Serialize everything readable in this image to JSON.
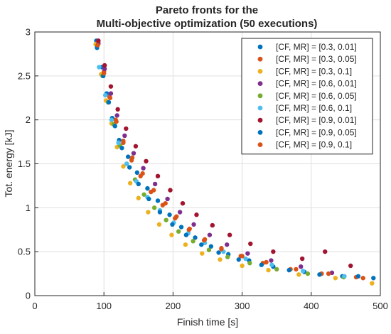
{
  "chart_data": {
    "type": "scatter",
    "title": [
      "Pareto fronts for the",
      "Multi-objective optimization (50 executions)"
    ],
    "xlabel": "Finish time [s]",
    "ylabel": "Tot. energy [kJ]",
    "xlim": [
      0,
      500
    ],
    "ylim": [
      0,
      3
    ],
    "xticks": [
      0,
      100,
      200,
      300,
      400,
      500
    ],
    "yticks": [
      0,
      0.5,
      1,
      1.5,
      2,
      2.5,
      3
    ],
    "xtick_labels": [
      "0",
      "100",
      "200",
      "300",
      "400",
      "500"
    ],
    "ytick_labels": [
      "0",
      "0.5",
      "1",
      "1.5",
      "2",
      "2.5",
      "3"
    ],
    "grid": true,
    "legend_position": "top-right",
    "series": [
      {
        "name": "[CF, MR] = [0.3, 0.01]",
        "color": "#0072BD",
        "points": [
          [
            89,
            2.9
          ],
          [
            97,
            2.6
          ],
          [
            104,
            2.3
          ],
          [
            112,
            2.02
          ],
          [
            122,
            1.77
          ],
          [
            135,
            1.58
          ],
          [
            148,
            1.4
          ],
          [
            163,
            1.22
          ],
          [
            178,
            1.08
          ],
          [
            195,
            0.92
          ],
          [
            212,
            0.78
          ],
          [
            232,
            0.66
          ],
          [
            255,
            0.56
          ],
          [
            280,
            0.47
          ],
          [
            310,
            0.4
          ],
          [
            345,
            0.33
          ],
          [
            390,
            0.27
          ],
          [
            445,
            0.22
          ],
          [
            490,
            0.2
          ]
        ]
      },
      {
        "name": "[CF, MR] = [0.3, 0.05]",
        "color": "#D95319",
        "points": [
          [
            91,
            2.88
          ],
          [
            100,
            2.55
          ],
          [
            108,
            2.26
          ],
          [
            117,
            2.0
          ],
          [
            128,
            1.76
          ],
          [
            141,
            1.57
          ],
          [
            156,
            1.39
          ],
          [
            172,
            1.2
          ],
          [
            189,
            1.05
          ],
          [
            205,
            0.9
          ],
          [
            224,
            0.76
          ],
          [
            246,
            0.64
          ],
          [
            270,
            0.54
          ],
          [
            298,
            0.45
          ],
          [
            330,
            0.37
          ],
          [
            370,
            0.3
          ],
          [
            415,
            0.25
          ],
          [
            465,
            0.21
          ]
        ]
      },
      {
        "name": "[CF, MR] = [0.3, 0.1]",
        "color": "#EDB120",
        "points": [
          [
            88,
            2.86
          ],
          [
            96,
            2.52
          ],
          [
            103,
            2.22
          ],
          [
            111,
            1.96
          ],
          [
            119,
            1.69
          ],
          [
            128,
            1.47
          ],
          [
            138,
            1.28
          ],
          [
            150,
            1.11
          ],
          [
            164,
            0.95
          ],
          [
            180,
            0.81
          ],
          [
            198,
            0.69
          ],
          [
            218,
            0.58
          ],
          [
            242,
            0.48
          ],
          [
            268,
            0.41
          ],
          [
            300,
            0.34
          ],
          [
            338,
            0.29
          ],
          [
            382,
            0.24
          ],
          [
            435,
            0.2
          ],
          [
            488,
            0.14
          ]
        ]
      },
      {
        "name": "[CF, MR] = [0.6, 0.01]",
        "color": "#7E2F8E",
        "points": [
          [
            92,
            2.87
          ],
          [
            101,
            2.58
          ],
          [
            110,
            2.3
          ],
          [
            119,
            2.05
          ],
          [
            130,
            1.82
          ],
          [
            143,
            1.62
          ],
          [
            157,
            1.45
          ],
          [
            174,
            1.27
          ],
          [
            192,
            1.1
          ],
          [
            210,
            0.95
          ],
          [
            230,
            0.81
          ],
          [
            253,
            0.69
          ],
          [
            278,
            0.58
          ],
          [
            308,
            0.48
          ],
          [
            342,
            0.4
          ],
          [
            385,
            0.33
          ],
          [
            430,
            0.26
          ]
        ]
      },
      {
        "name": "[CF, MR] = [0.6, 0.05]",
        "color": "#77AC30",
        "points": [
          [
            90,
            2.84
          ],
          [
            98,
            2.5
          ],
          [
            106,
            2.2
          ],
          [
            114,
            1.95
          ],
          [
            123,
            1.71
          ],
          [
            133,
            1.5
          ],
          [
            145,
            1.32
          ],
          [
            158,
            1.15
          ],
          [
            173,
            1.0
          ],
          [
            190,
            0.86
          ],
          [
            208,
            0.73
          ],
          [
            229,
            0.62
          ],
          [
            252,
            0.52
          ],
          [
            279,
            0.44
          ],
          [
            311,
            0.37
          ],
          [
            350,
            0.3
          ],
          [
            395,
            0.25
          ],
          [
            447,
            0.21
          ]
        ]
      },
      {
        "name": "[CF, MR] = [0.6, 0.1]",
        "color": "#4DBEEE",
        "points": [
          [
            93,
            2.6
          ],
          [
            102,
            2.28
          ],
          [
            111,
            2.0
          ],
          [
            121,
            1.74
          ],
          [
            133,
            1.5
          ],
          [
            147,
            1.3
          ],
          [
            163,
            1.12
          ],
          [
            181,
            0.97
          ],
          [
            201,
            0.83
          ],
          [
            222,
            0.71
          ],
          [
            246,
            0.6
          ],
          [
            273,
            0.5
          ],
          [
            305,
            0.42
          ],
          [
            343,
            0.35
          ],
          [
            388,
            0.28
          ],
          [
            448,
            0.22
          ]
        ]
      },
      {
        "name": "[CF, MR] = [0.9, 0.01]",
        "color": "#A2142F",
        "points": [
          [
            92,
            2.9
          ],
          [
            101,
            2.62
          ],
          [
            110,
            2.38
          ],
          [
            120,
            2.12
          ],
          [
            132,
            1.9
          ],
          [
            146,
            1.7
          ],
          [
            161,
            1.53
          ],
          [
            178,
            1.36
          ],
          [
            196,
            1.2
          ],
          [
            214,
            1.05
          ],
          [
            234,
            0.92
          ],
          [
            257,
            0.8
          ],
          [
            282,
            0.69
          ],
          [
            312,
            0.59
          ],
          [
            345,
            0.5
          ],
          [
            387,
            0.42
          ],
          [
            420,
            0.5
          ],
          [
            457,
            0.34
          ]
        ]
      },
      {
        "name": "[CF, MR] = [0.9, 0.05]",
        "color": "#0072BD",
        "points": [
          [
            90,
            2.82
          ],
          [
            99,
            2.5
          ],
          [
            107,
            2.2
          ],
          [
            116,
            1.93
          ],
          [
            126,
            1.68
          ],
          [
            137,
            1.46
          ],
          [
            150,
            1.27
          ],
          [
            165,
            1.1
          ],
          [
            181,
            0.95
          ],
          [
            199,
            0.81
          ],
          [
            219,
            0.69
          ],
          [
            241,
            0.58
          ],
          [
            266,
            0.49
          ],
          [
            295,
            0.41
          ],
          [
            328,
            0.35
          ],
          [
            368,
            0.29
          ],
          [
            412,
            0.24
          ],
          [
            468,
            0.22
          ]
        ]
      },
      {
        "name": "[CF, MR] = [0.9, 0.1]",
        "color": "#D95319",
        "points": [
          [
            91,
            2.85
          ],
          [
            100,
            2.53
          ],
          [
            109,
            2.25
          ],
          [
            118,
            1.98
          ],
          [
            128,
            1.74
          ],
          [
            140,
            1.54
          ],
          [
            153,
            1.36
          ],
          [
            168,
            1.18
          ],
          [
            185,
            1.03
          ],
          [
            203,
            0.88
          ],
          [
            223,
            0.75
          ],
          [
            245,
            0.63
          ],
          [
            270,
            0.53
          ],
          [
            300,
            0.45
          ],
          [
            335,
            0.38
          ],
          [
            378,
            0.3
          ],
          [
            425,
            0.25
          ],
          [
            475,
            0.2
          ]
        ]
      }
    ]
  }
}
